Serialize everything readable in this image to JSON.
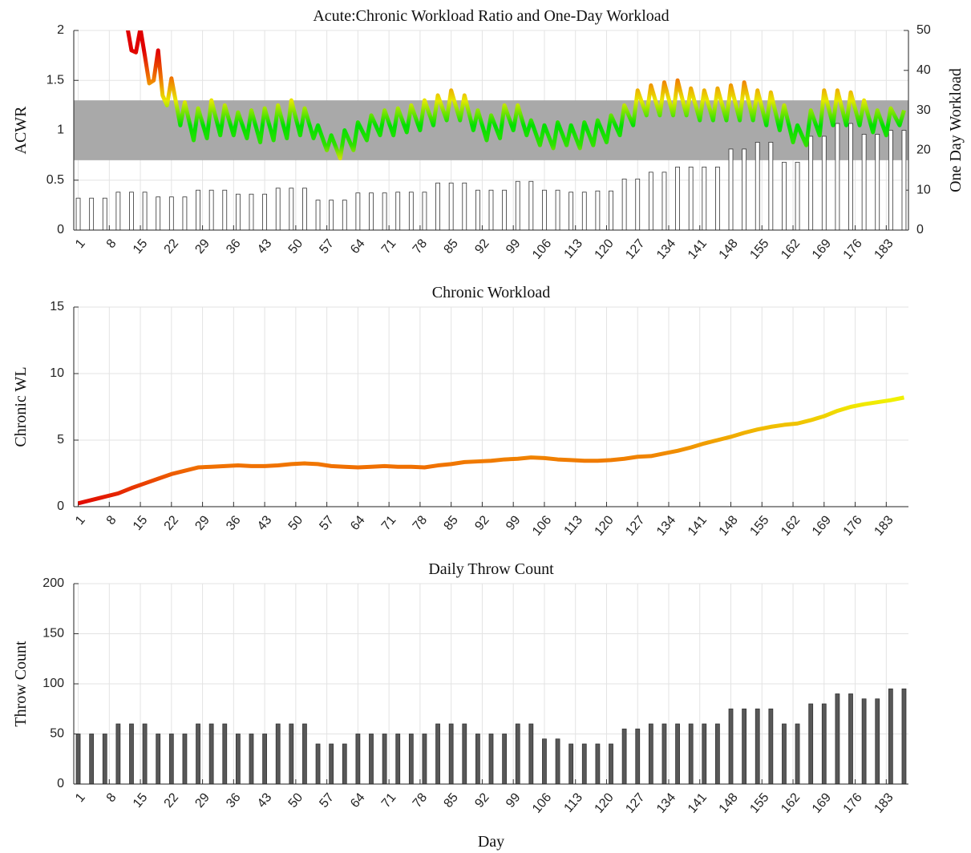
{
  "chart_data": [
    {
      "type": "line",
      "title": "Acute:Chronic Workload Ratio and One-Day Workload",
      "ylabel": "ACWR",
      "y2label": "One Day Workload",
      "xlim": [
        0,
        188
      ],
      "xticks": [
        1,
        8,
        15,
        22,
        29,
        36,
        43,
        50,
        57,
        64,
        71,
        78,
        85,
        92,
        99,
        106,
        113,
        120,
        127,
        134,
        141,
        148,
        155,
        162,
        169,
        176,
        183
      ],
      "ylim": [
        0,
        2
      ],
      "yticks": [
        0,
        0.5,
        1,
        1.5,
        2
      ],
      "y2lim": [
        0,
        50
      ],
      "y2ticks": [
        0,
        10,
        20,
        30,
        40,
        50
      ],
      "grid": true,
      "band": [
        0.7,
        1.3
      ],
      "band_color": "#a9a9a9",
      "series": [
        {
          "type": "bar",
          "axis": "y2",
          "color": "#ffffff",
          "x": [
            1,
            4,
            7,
            10,
            13,
            16,
            19,
            22,
            25,
            28,
            31,
            34,
            37,
            40,
            43,
            46,
            49,
            52,
            55,
            58,
            61,
            64,
            67,
            70,
            73,
            76,
            79,
            82,
            85,
            88,
            91,
            94,
            97,
            100,
            103,
            106,
            109,
            112,
            115,
            118,
            121,
            124,
            127,
            130,
            133,
            136,
            139,
            142,
            145,
            148,
            151,
            154,
            157,
            160,
            163,
            166,
            169,
            172,
            175,
            178,
            181,
            184,
            187
          ],
          "values": [
            8,
            8,
            8,
            9.5,
            9.5,
            9.5,
            8.3,
            8.3,
            8.3,
            10,
            10,
            10,
            9,
            9,
            9,
            10.5,
            10.5,
            10.5,
            7.5,
            7.5,
            7.5,
            9.3,
            9.3,
            9.3,
            9.5,
            9.5,
            9.5,
            11.8,
            11.8,
            11.8,
            10,
            10,
            10,
            12.2,
            12.2,
            10,
            10,
            9.5,
            9.5,
            9.8,
            9.8,
            12.8,
            12.8,
            14.5,
            14.5,
            15.8,
            15.8,
            15.8,
            15.8,
            20.3,
            20.3,
            22,
            22,
            17,
            17,
            23.5,
            23.5,
            26.7,
            26.7,
            24,
            24,
            25,
            25
          ]
        },
        {
          "type": "line",
          "color_stops": [
            {
              "value": 0.7,
              "color": "#e0e000"
            },
            {
              "value": 0.85,
              "color": "#30e000"
            },
            {
              "value": 1.05,
              "color": "#00e000"
            },
            {
              "value": 1.3,
              "color": "#e8e800"
            },
            {
              "value": 1.5,
              "color": "#f08000"
            },
            {
              "value": 1.8,
              "color": "#e00000"
            }
          ],
          "x": [
            12,
            13,
            14,
            15,
            16,
            17,
            18,
            19,
            20,
            21,
            22,
            24,
            25,
            27,
            28,
            30,
            31,
            33,
            34,
            36,
            37,
            39,
            40,
            42,
            43,
            45,
            46,
            48,
            49,
            51,
            52,
            54,
            55,
            57,
            58,
            60,
            61,
            63,
            64,
            66,
            67,
            69,
            70,
            72,
            73,
            75,
            76,
            78,
            79,
            81,
            82,
            84,
            85,
            87,
            88,
            90,
            91,
            93,
            94,
            96,
            97,
            99,
            100,
            102,
            103,
            105,
            106,
            108,
            109,
            111,
            112,
            114,
            115,
            117,
            118,
            120,
            121,
            123,
            124,
            126,
            127,
            129,
            130,
            132,
            133,
            135,
            136,
            138,
            139,
            141,
            142,
            144,
            145,
            147,
            148,
            150,
            151,
            153,
            154,
            156,
            157,
            159,
            160,
            162,
            163,
            165,
            166,
            168,
            169,
            171,
            172,
            174,
            175,
            177,
            178,
            180,
            181,
            183,
            184,
            186,
            187
          ],
          "values": [
            2.05,
            1.8,
            1.78,
            2.02,
            1.75,
            1.47,
            1.5,
            1.8,
            1.35,
            1.25,
            1.52,
            1.05,
            1.28,
            0.9,
            1.22,
            0.92,
            1.3,
            0.95,
            1.25,
            0.95,
            1.18,
            0.92,
            1.2,
            0.88,
            1.22,
            0.9,
            1.25,
            0.92,
            1.3,
            0.95,
            1.22,
            0.92,
            1.05,
            0.8,
            0.95,
            0.72,
            1.0,
            0.8,
            1.08,
            0.9,
            1.15,
            0.95,
            1.2,
            0.95,
            1.22,
            0.98,
            1.25,
            1.0,
            1.3,
            1.05,
            1.35,
            1.1,
            1.4,
            1.1,
            1.35,
            1.0,
            1.2,
            0.9,
            1.15,
            0.92,
            1.25,
            1.0,
            1.25,
            0.95,
            1.1,
            0.85,
            1.05,
            0.82,
            1.08,
            0.85,
            1.05,
            0.82,
            1.08,
            0.85,
            1.1,
            0.88,
            1.15,
            0.95,
            1.25,
            1.05,
            1.4,
            1.15,
            1.45,
            1.15,
            1.48,
            1.15,
            1.5,
            1.15,
            1.42,
            1.1,
            1.4,
            1.1,
            1.42,
            1.1,
            1.45,
            1.1,
            1.48,
            1.1,
            1.4,
            1.05,
            1.38,
            1.0,
            1.25,
            0.88,
            1.05,
            0.85,
            1.2,
            0.95,
            1.4,
            1.05,
            1.4,
            1.05,
            1.38,
            1.05,
            1.3,
            0.98,
            1.2,
            0.95,
            1.22,
            1.05,
            1.2
          ]
        }
      ]
    },
    {
      "type": "line",
      "title": "Chronic Workload",
      "ylabel": "Chronic WL",
      "xlim": [
        0,
        188
      ],
      "xticks": [
        1,
        8,
        15,
        22,
        29,
        36,
        43,
        50,
        57,
        64,
        71,
        78,
        85,
        92,
        99,
        106,
        113,
        120,
        127,
        134,
        141,
        148,
        155,
        162,
        169,
        176,
        183
      ],
      "ylim": [
        0,
        15
      ],
      "yticks": [
        0,
        5,
        10,
        15
      ],
      "grid": true,
      "series": [
        {
          "type": "line",
          "color_stops": [
            {
              "value": 0,
              "color": "#e00000"
            },
            {
              "value": 3,
              "color": "#f07000"
            },
            {
              "value": 8,
              "color": "#f0f000"
            }
          ],
          "x": [
            1,
            4,
            7,
            10,
            13,
            16,
            19,
            22,
            25,
            28,
            31,
            34,
            37,
            40,
            43,
            46,
            49,
            52,
            55,
            58,
            61,
            64,
            67,
            70,
            73,
            76,
            79,
            82,
            85,
            88,
            91,
            94,
            97,
            100,
            103,
            106,
            109,
            112,
            115,
            118,
            121,
            124,
            127,
            130,
            133,
            136,
            139,
            142,
            145,
            148,
            151,
            154,
            157,
            160,
            163,
            166,
            169,
            172,
            175,
            178,
            181,
            184,
            187
          ],
          "values": [
            0.25,
            0.5,
            0.75,
            1.0,
            1.4,
            1.75,
            2.1,
            2.45,
            2.7,
            2.95,
            3.0,
            3.05,
            3.1,
            3.05,
            3.05,
            3.1,
            3.2,
            3.25,
            3.2,
            3.05,
            3.0,
            2.95,
            3.0,
            3.05,
            3.0,
            3.0,
            2.95,
            3.1,
            3.2,
            3.35,
            3.4,
            3.45,
            3.55,
            3.6,
            3.7,
            3.65,
            3.55,
            3.5,
            3.45,
            3.45,
            3.5,
            3.6,
            3.75,
            3.8,
            4.0,
            4.2,
            4.45,
            4.75,
            5.0,
            5.25,
            5.55,
            5.8,
            6.0,
            6.15,
            6.25,
            6.5,
            6.8,
            7.2,
            7.5,
            7.7,
            7.85,
            8.0,
            8.2
          ]
        }
      ]
    },
    {
      "type": "bar",
      "title": "Daily Throw Count",
      "ylabel": "Throw Count",
      "xlabel": "Day",
      "xlim": [
        0,
        188
      ],
      "xticks": [
        1,
        8,
        15,
        22,
        29,
        36,
        43,
        50,
        57,
        64,
        71,
        78,
        85,
        92,
        99,
        106,
        113,
        120,
        127,
        134,
        141,
        148,
        155,
        162,
        169,
        176,
        183
      ],
      "ylim": [
        0,
        200
      ],
      "yticks": [
        0,
        50,
        100,
        150,
        200
      ],
      "grid": true,
      "series": [
        {
          "type": "bar",
          "color": "#585858",
          "x": [
            1,
            4,
            7,
            10,
            13,
            16,
            19,
            22,
            25,
            28,
            31,
            34,
            37,
            40,
            43,
            46,
            49,
            52,
            55,
            58,
            61,
            64,
            67,
            70,
            73,
            76,
            79,
            82,
            85,
            88,
            91,
            94,
            97,
            100,
            103,
            106,
            109,
            112,
            115,
            118,
            121,
            124,
            127,
            130,
            133,
            136,
            139,
            142,
            145,
            148,
            151,
            154,
            157,
            160,
            163,
            166,
            169,
            172,
            175,
            178,
            181,
            184,
            187
          ],
          "values": [
            50,
            50,
            50,
            60,
            60,
            60,
            50,
            50,
            50,
            60,
            60,
            60,
            50,
            50,
            50,
            60,
            60,
            60,
            40,
            40,
            40,
            50,
            50,
            50,
            50,
            50,
            50,
            60,
            60,
            60,
            50,
            50,
            50,
            60,
            60,
            45,
            45,
            40,
            40,
            40,
            40,
            55,
            55,
            60,
            60,
            60,
            60,
            60,
            60,
            75,
            75,
            75,
            75,
            60,
            60,
            80,
            80,
            90,
            90,
            85,
            85,
            95,
            95
          ]
        }
      ]
    }
  ]
}
